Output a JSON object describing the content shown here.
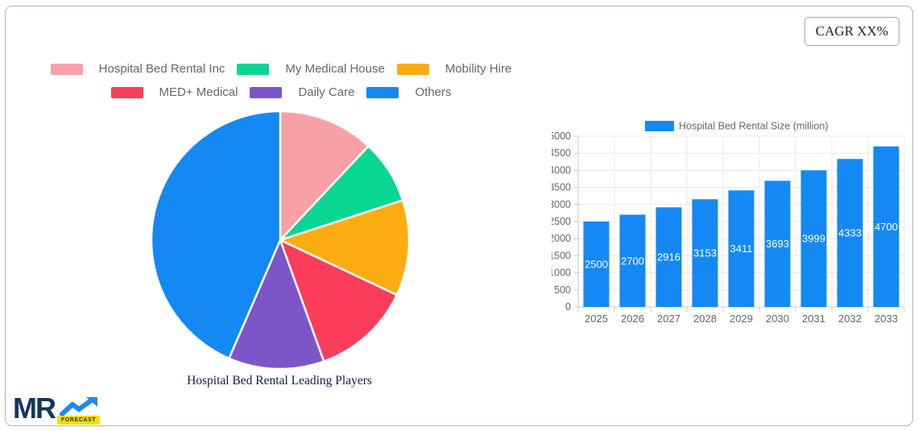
{
  "cagr_label": "CAGR XX%",
  "logo": {
    "text": "MR",
    "badge": "FORECAST"
  },
  "theme": {
    "muted_text": "#666666",
    "dark_text": "#12203e",
    "grid_color": "#e8e8e8",
    "axis_color": "#c9c9c9",
    "frame_border": "#b3b3b3",
    "logo_navy": "#14355e",
    "logo_arrow_blue": "#1e88f7",
    "logo_badge_yellow": "#ffd907"
  },
  "chart_data": [
    {
      "type": "pie",
      "title": "Hospital Bed Rental Leading Players",
      "labels": [
        "Hospital Bed Rental Inc",
        "My Medical House",
        "Mobility Hire",
        "MED+ Medical",
        "Daily Care",
        "Others"
      ],
      "values": [
        12,
        8,
        12,
        12.5,
        12,
        43.5
      ],
      "colors": [
        "#f7a1a7",
        "#08d793",
        "#fcac11",
        "#fb3c5b",
        "#7c56c8",
        "#1489f4"
      ],
      "start_angle_deg": 0,
      "direction": "clockwise",
      "legend_position": "top",
      "slice_border_color": "#ffffff"
    },
    {
      "type": "bar",
      "legend_label": "Hospital Bed Rental Size (million)",
      "categories": [
        "2025",
        "2026",
        "2027",
        "2028",
        "2029",
        "2030",
        "2031",
        "2032",
        "2033"
      ],
      "values": [
        2500,
        2700,
        2916,
        3153,
        3411,
        3693,
        3999,
        4333,
        4700
      ],
      "bar_color": "#1489f4",
      "value_label_color": "#ffffff",
      "ylabel": "",
      "xlabel": "",
      "ylim": [
        0,
        5000
      ],
      "ytick_step": 500,
      "grid": true,
      "legend_position": "top"
    }
  ]
}
